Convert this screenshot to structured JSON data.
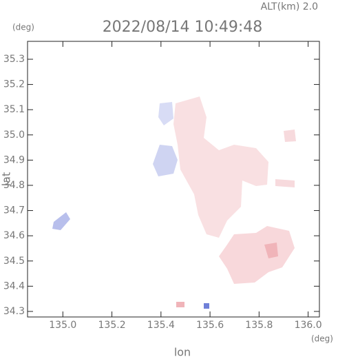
{
  "chart_data": {
    "type": "map",
    "title": "2022/08/14 10:49:48",
    "altitude_label": "ALT(km) 2.0",
    "y_unit": "(deg)",
    "x_unit": "(deg)",
    "xlabel": "lon",
    "ylabel": "lat",
    "xlim": [
      134.856,
      136.046
    ],
    "ylim": [
      34.278,
      35.371
    ],
    "xticks": [
      {
        "value": 135,
        "label": "135.0"
      },
      135.2,
      135.4,
      135.6,
      135.8,
      {
        "value": 136,
        "label": "136.0"
      }
    ],
    "yticks": [
      34.3,
      34.4,
      34.5,
      34.6,
      34.7,
      34.8,
      34.9,
      {
        "value": 35,
        "label": "35.0"
      },
      35.1,
      35.2,
      35.3
    ]
  }
}
